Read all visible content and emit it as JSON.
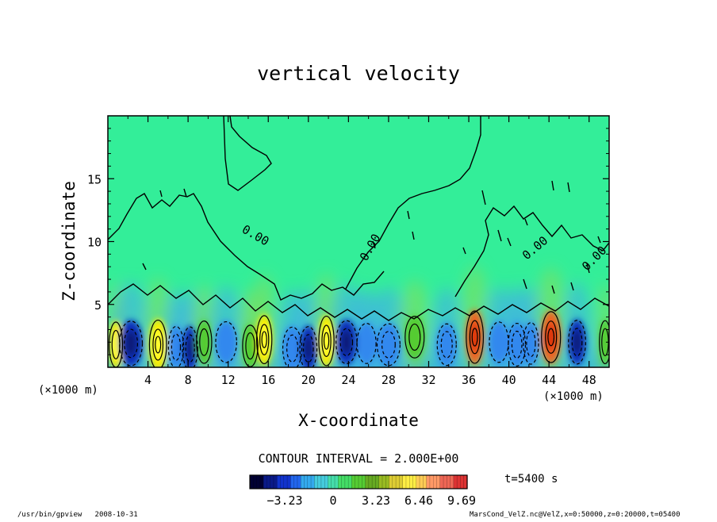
{
  "chart_data": {
    "type": "heatmap",
    "title": "vertical velocity",
    "xlabel": "X-coordinate",
    "ylabel": "Z-coordinate",
    "x_unit": "(×1000 m)",
    "y_unit": "(×1000 m)",
    "xlim": [
      0,
      50
    ],
    "ylim": [
      0,
      20
    ],
    "x_ticks": [
      4,
      8,
      12,
      16,
      20,
      24,
      28,
      32,
      36,
      40,
      44,
      48
    ],
    "y_ticks": [
      5,
      10,
      15
    ],
    "contour_interval_label": "CONTOUR INTERVAL = 2.000E+00",
    "contour_labels": [
      "0.00",
      "0.00",
      "0.00",
      "0.00"
    ],
    "colorbar_ticks": [
      "−3.23",
      "0",
      "3.23",
      "6.46",
      "9.69"
    ],
    "colorbar_range": [
      -6.46,
      12.92
    ],
    "time_label": "t=5400 s",
    "colors": {
      "background": "#33ee99",
      "strong_up": "#ffee00",
      "very_strong_up": "#ee6622",
      "up": "#55cc33",
      "down": "#3388ee",
      "strong_down": "#1133bb"
    },
    "cells": [
      {
        "x": 0.8,
        "z": 1.8,
        "w": 0.7,
        "v": 6.5
      },
      {
        "x": 2.3,
        "z": 1.9,
        "w": 1.2,
        "v": -6.2
      },
      {
        "x": 5.0,
        "z": 1.8,
        "w": 0.9,
        "v": 9.2
      },
      {
        "x": 6.8,
        "z": 1.6,
        "w": 0.8,
        "v": -4.0
      },
      {
        "x": 8.2,
        "z": 1.5,
        "w": 0.8,
        "v": -5.0
      },
      {
        "x": 9.6,
        "z": 2.0,
        "w": 0.8,
        "v": 4.5
      },
      {
        "x": 11.8,
        "z": 2.0,
        "w": 1.1,
        "v": -3.5
      },
      {
        "x": 14.2,
        "z": 1.7,
        "w": 0.8,
        "v": 4.0
      },
      {
        "x": 15.6,
        "z": 2.2,
        "w": 0.8,
        "v": 8.5
      },
      {
        "x": 18.4,
        "z": 1.5,
        "w": 1.0,
        "v": -4.8
      },
      {
        "x": 20.0,
        "z": 1.5,
        "w": 0.9,
        "v": -5.5
      },
      {
        "x": 21.8,
        "z": 2.1,
        "w": 0.8,
        "v": 9.5
      },
      {
        "x": 23.8,
        "z": 2.0,
        "w": 1.1,
        "v": -5.0
      },
      {
        "x": 25.8,
        "z": 1.9,
        "w": 1.0,
        "v": -3.0
      },
      {
        "x": 28.0,
        "z": 1.8,
        "w": 1.2,
        "v": -4.2
      },
      {
        "x": 30.6,
        "z": 2.4,
        "w": 1.0,
        "v": 4.0
      },
      {
        "x": 33.8,
        "z": 1.8,
        "w": 1.0,
        "v": -4.0
      },
      {
        "x": 36.6,
        "z": 2.4,
        "w": 0.9,
        "v": 11.5
      },
      {
        "x": 39.0,
        "z": 2.0,
        "w": 1.0,
        "v": -3.2
      },
      {
        "x": 40.8,
        "z": 1.8,
        "w": 0.9,
        "v": -4.8
      },
      {
        "x": 42.2,
        "z": 1.9,
        "w": 0.8,
        "v": -4.0
      },
      {
        "x": 44.2,
        "z": 2.4,
        "w": 1.0,
        "v": 10.5
      },
      {
        "x": 46.8,
        "z": 2.0,
        "w": 0.9,
        "v": -5.5
      },
      {
        "x": 49.6,
        "z": 2.0,
        "w": 0.6,
        "v": 5.0
      }
    ]
  },
  "footer": {
    "left": "/usr/bin/gpview   2008-10-31",
    "right": "MarsCond_VelZ.nc@VelZ,x=0:50000,z=0:20000,t=05400"
  }
}
